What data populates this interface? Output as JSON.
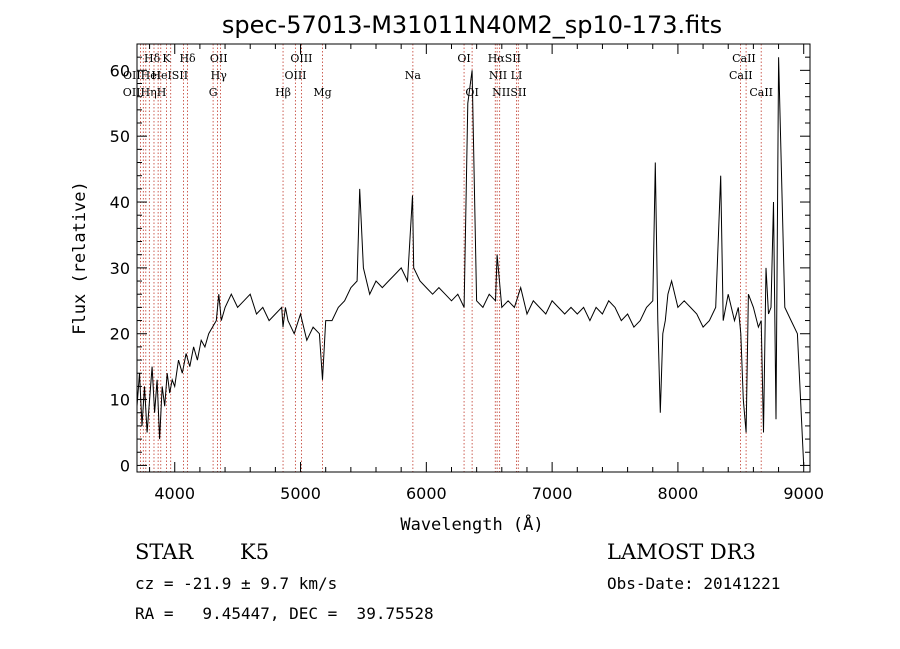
{
  "chart_data": {
    "type": "line",
    "title": "spec-57013-M31011N40M2_sp10-173.fits",
    "xlabel": "Wavelength (Å)",
    "ylabel": "Flux (relative)",
    "xlim": [
      3700,
      9050
    ],
    "ylim": [
      -1,
      64
    ],
    "xticks": [
      4000,
      5000,
      6000,
      7000,
      8000,
      9000
    ],
    "yticks": [
      0,
      10,
      20,
      30,
      40,
      50,
      60
    ],
    "spectrum": {
      "name": "flux",
      "x": [
        3700,
        3720,
        3740,
        3760,
        3780,
        3800,
        3820,
        3840,
        3860,
        3880,
        3900,
        3920,
        3940,
        3960,
        3980,
        4000,
        4030,
        4060,
        4090,
        4120,
        4150,
        4180,
        4210,
        4240,
        4270,
        4300,
        4330,
        4350,
        4370,
        4400,
        4450,
        4500,
        4550,
        4600,
        4650,
        4700,
        4750,
        4800,
        4850,
        4861,
        4880,
        4900,
        4950,
        5000,
        5050,
        5100,
        5150,
        5175,
        5200,
        5250,
        5300,
        5350,
        5400,
        5450,
        5470,
        5500,
        5550,
        5600,
        5650,
        5700,
        5750,
        5800,
        5850,
        5890,
        5900,
        5950,
        6000,
        6050,
        6100,
        6150,
        6200,
        6250,
        6300,
        6330,
        6364,
        6400,
        6450,
        6500,
        6550,
        6563,
        6600,
        6650,
        6700,
        6750,
        6800,
        6850,
        6900,
        6950,
        7000,
        7050,
        7100,
        7150,
        7200,
        7250,
        7300,
        7350,
        7400,
        7450,
        7500,
        7550,
        7600,
        7650,
        7700,
        7750,
        7800,
        7820,
        7840,
        7860,
        7880,
        7900,
        7920,
        7950,
        8000,
        8050,
        8100,
        8150,
        8200,
        8250,
        8300,
        8340,
        8360,
        8400,
        8450,
        8480,
        8500,
        8520,
        8542,
        8560,
        8600,
        8640,
        8662,
        8680,
        8700,
        8720,
        8740,
        8760,
        8780,
        8800,
        8850,
        8900,
        8950,
        9000
      ],
      "y": [
        9,
        14,
        6,
        12,
        5,
        10,
        15,
        8,
        13,
        4,
        12,
        9,
        14,
        11,
        13,
        12,
        16,
        14,
        17,
        15,
        18,
        16,
        19,
        18,
        20,
        21,
        22,
        26,
        22,
        24,
        26,
        24,
        25,
        26,
        23,
        24,
        22,
        23,
        24,
        21,
        24,
        22,
        20,
        23,
        19,
        21,
        20,
        13,
        22,
        22,
        24,
        25,
        27,
        28,
        42,
        30,
        26,
        28,
        27,
        28,
        29,
        30,
        28,
        41,
        30,
        28,
        27,
        26,
        27,
        26,
        25,
        26,
        24,
        55,
        60,
        25,
        24,
        26,
        25,
        32,
        24,
        25,
        24,
        27,
        23,
        25,
        24,
        23,
        25,
        24,
        23,
        24,
        23,
        24,
        22,
        24,
        23,
        25,
        24,
        22,
        23,
        21,
        22,
        24,
        25,
        46,
        22,
        8,
        20,
        22,
        26,
        28,
        24,
        25,
        24,
        23,
        21,
        22,
        24,
        44,
        22,
        26,
        22,
        24,
        20,
        10,
        5,
        26,
        24,
        21,
        22,
        5,
        30,
        23,
        24,
        40,
        7,
        62,
        24,
        22,
        20,
        0
      ]
    },
    "line_labels": {
      "row1": [
        {
          "t": "Hδ",
          "x": 3820
        },
        {
          "t": "K",
          "x": 3934
        },
        {
          "t": "Hδ",
          "x": 4102
        },
        {
          "t": "OII",
          "x": 4350
        },
        {
          "t": "OIII",
          "x": 5007
        },
        {
          "t": "OI",
          "x": 6300
        },
        {
          "t": "HαSII",
          "x": 6620
        },
        {
          "t": "CaII",
          "x": 8525
        }
      ],
      "row2": [
        {
          "t": "OIIHeI",
          "x": 3740
        },
        {
          "t": "HeISII",
          "x": 3960
        },
        {
          "t": "Hγ",
          "x": 4350
        },
        {
          "t": "OIII",
          "x": 4960
        },
        {
          "t": "Na",
          "x": 5893
        },
        {
          "t": "NII LI",
          "x": 6630
        },
        {
          "t": "CaII",
          "x": 8500
        }
      ],
      "row3": [
        {
          "t": "OIIHηH",
          "x": 3760
        },
        {
          "t": "G",
          "x": 4305
        },
        {
          "t": "Hβ",
          "x": 4861
        },
        {
          "t": "Mg",
          "x": 5175
        },
        {
          "t": "OI",
          "x": 6364
        },
        {
          "t": "NIISII",
          "x": 6660
        },
        {
          "t": "CaII",
          "x": 8662
        }
      ]
    },
    "line_positions": [
      3727,
      3750,
      3770,
      3798,
      3835,
      3868,
      3889,
      3934,
      3968,
      4069,
      4102,
      4305,
      4340,
      4363,
      4861,
      4959,
      5007,
      5175,
      5893,
      6300,
      6364,
      6548,
      6563,
      6583,
      6717,
      6731,
      8498,
      8542,
      8662
    ]
  },
  "info": {
    "object_class": "STAR",
    "subclass": "K5",
    "survey": "LAMOST DR3",
    "cz": "cz = -21.9 ± 9.7 km/s",
    "obs_date": "Obs-Date: 20141221",
    "coords": "RA =   9.45447, DEC =  39.75528"
  },
  "colors": {
    "line_marker": "#c0392b",
    "spectrum": "#000000"
  }
}
